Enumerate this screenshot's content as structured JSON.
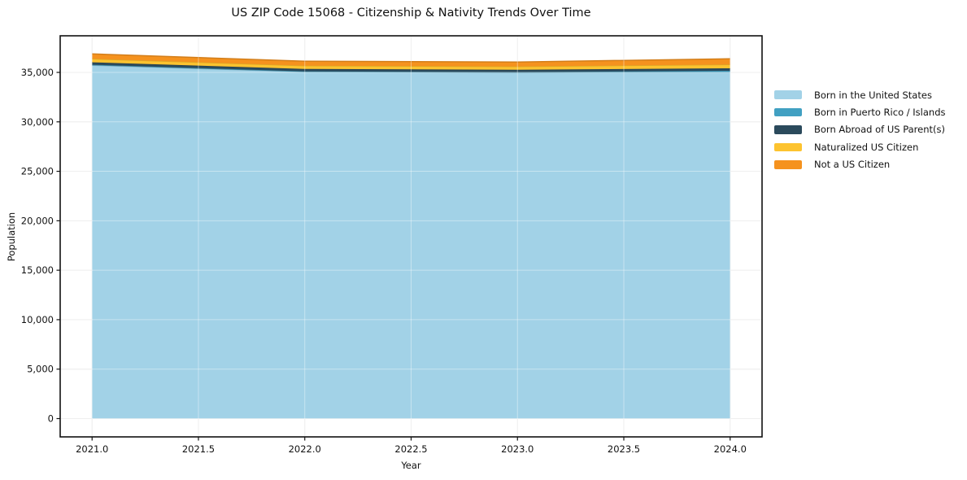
{
  "figure": {
    "background": "#ffffff"
  },
  "chart_data": {
    "type": "area",
    "stacked": true,
    "title": "US ZIP Code 15068 - Citizenship & Nativity Trends Over Time",
    "xlabel": "Year",
    "ylabel": "Population",
    "x": [
      2021,
      2022,
      2023,
      2024
    ],
    "series": [
      {
        "name": "Born in the United States",
        "color": "#a2d2e7",
        "values": [
          35720,
          35060,
          34980,
          35030
        ]
      },
      {
        "name": "Born in Puerto Rico / Islands",
        "color": "#41a0c2",
        "values": [
          55,
          45,
          45,
          135
        ]
      },
      {
        "name": "Born Abroad of US Parent(s)",
        "color": "#2b4a5c",
        "values": [
          245,
          245,
          245,
          245
        ]
      },
      {
        "name": "Naturalized US Citizen",
        "color": "#fdc32f",
        "values": [
          355,
          330,
          330,
          385
        ]
      },
      {
        "name": "Not a US Citizen",
        "color": "#f5921e",
        "values": [
          490,
          450,
          450,
          575
        ]
      }
    ],
    "xticks": [
      2021.0,
      2021.5,
      2022.0,
      2022.5,
      2023.0,
      2023.5,
      2024.0
    ],
    "xtick_labels": [
      "2021.0",
      "2021.5",
      "2022.0",
      "2022.5",
      "2023.0",
      "2023.5",
      "2024.0"
    ],
    "yticks": [
      0,
      5000,
      10000,
      15000,
      20000,
      25000,
      30000,
      35000
    ],
    "ytick_labels": [
      "0",
      "5,000",
      "10,000",
      "15,000",
      "20,000",
      "25,000",
      "30,000",
      "35,000"
    ],
    "xlim": [
      2020.85,
      2024.15
    ],
    "ylim": [
      -1850,
      38700
    ],
    "grid": true,
    "legend_position": "right"
  }
}
